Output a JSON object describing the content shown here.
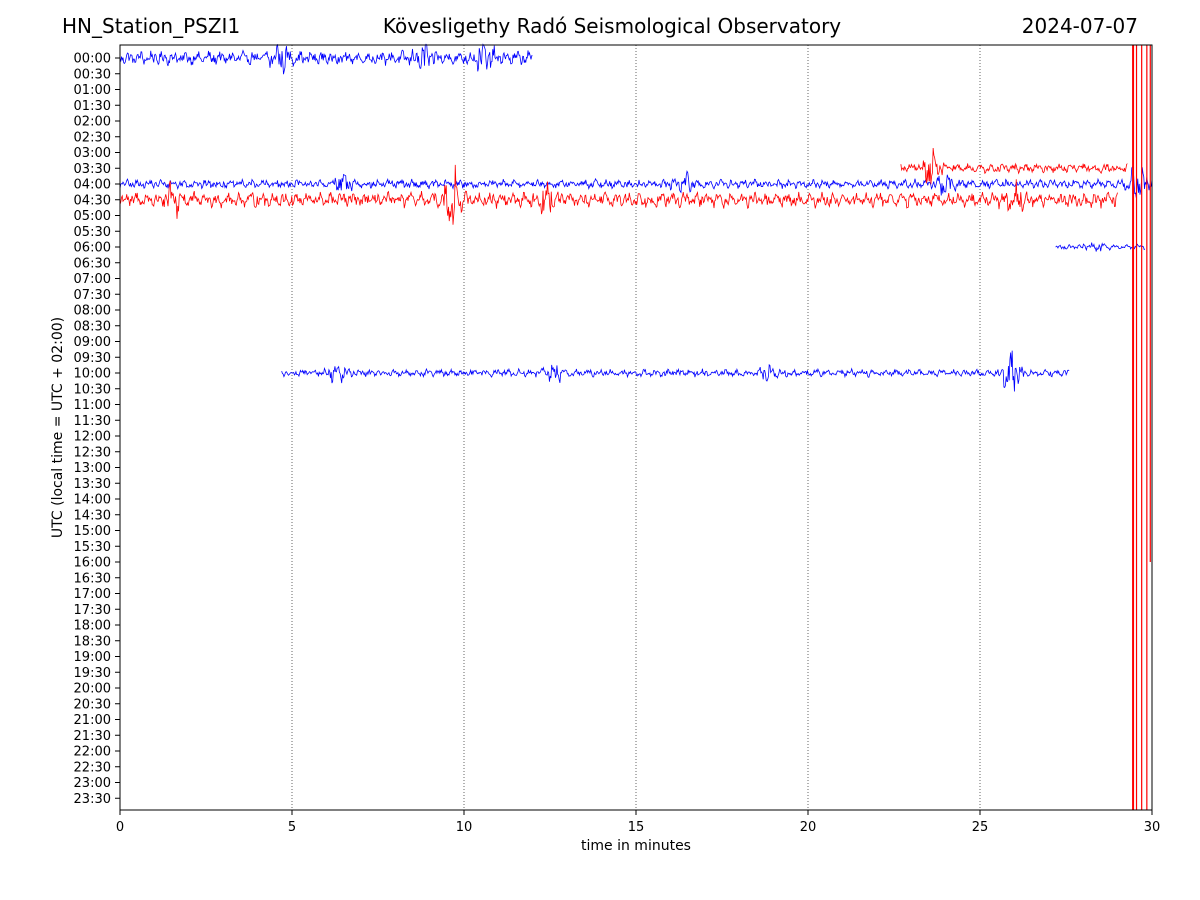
{
  "header": {
    "station": "HN_Station_PSZI1",
    "observatory": "Kövesligethy Radó Seismological Observatory",
    "date": "2024-07-07"
  },
  "chart_data": {
    "type": "line",
    "title": "Kövesligethy Radó Seismological Observatory",
    "xlabel": "time in minutes",
    "ylabel": "UTC (local time = UTC + 02:00)",
    "xlim": [
      0,
      30
    ],
    "x_ticks": [
      "0",
      "5",
      "10",
      "15",
      "20",
      "25",
      "30"
    ],
    "y_ticks": [
      "00:00",
      "00:30",
      "01:00",
      "01:30",
      "02:00",
      "02:30",
      "03:00",
      "03:30",
      "04:00",
      "04:30",
      "05:00",
      "05:30",
      "06:00",
      "06:30",
      "07:00",
      "07:30",
      "08:00",
      "08:30",
      "09:00",
      "09:30",
      "10:00",
      "10:30",
      "11:00",
      "11:30",
      "12:00",
      "12:30",
      "13:00",
      "13:30",
      "14:00",
      "14:30",
      "15:00",
      "15:30",
      "16:00",
      "16:30",
      "17:00",
      "17:30",
      "18:00",
      "18:30",
      "19:00",
      "19:30",
      "20:00",
      "20:30",
      "21:00",
      "21:30",
      "22:00",
      "22:30",
      "23:00",
      "23:30"
    ],
    "grid": "vertical dotted lines at every 5 minutes",
    "colors": {
      "blue": "#0000ff",
      "red": "#ff0000"
    },
    "series": [
      {
        "row": "00:00",
        "color": "blue",
        "x_start": 0,
        "x_end": 12,
        "amplitude": 0.45,
        "bursts": [
          {
            "x": 4.6,
            "amp": 0.9
          },
          {
            "x": 8.8,
            "amp": 0.85
          },
          {
            "x": 10.6,
            "amp": 0.8
          }
        ]
      },
      {
        "row": "04:00",
        "color": "blue",
        "x_start": 0,
        "x_end": 30,
        "amplitude": 0.3,
        "bursts": [
          {
            "x": 6.5,
            "amp": 0.6
          },
          {
            "x": 16.4,
            "amp": 0.55
          },
          {
            "x": 24,
            "amp": 0.7
          },
          {
            "x": 29.6,
            "amp": 1.2
          }
        ]
      },
      {
        "row": "04:30",
        "color": "red",
        "x_start": 0,
        "x_end": 29,
        "amplitude": 0.5,
        "bursts": [
          {
            "x": 1.6,
            "amp": 0.9
          },
          {
            "x": 9.7,
            "amp": 1.8
          },
          {
            "x": 12.4,
            "amp": 0.9
          },
          {
            "x": 26,
            "amp": 0.9
          }
        ]
      },
      {
        "row": "03:30",
        "color": "red",
        "x_start": 22.7,
        "x_end": 29.3,
        "amplitude": 0.3,
        "bursts": [
          {
            "x": 23.6,
            "amp": 1.2
          }
        ]
      },
      {
        "row": "06:00",
        "color": "blue",
        "x_start": 27.2,
        "x_end": 29.8,
        "amplitude": 0.18,
        "bursts": [
          {
            "x": 28.3,
            "amp": 0.3
          }
        ]
      },
      {
        "row": "10:00",
        "color": "blue",
        "x_start": 4.7,
        "x_end": 27.6,
        "amplitude": 0.25,
        "bursts": [
          {
            "x": 6.3,
            "amp": 0.5
          },
          {
            "x": 12.6,
            "amp": 0.6
          },
          {
            "x": 18.9,
            "amp": 0.4
          },
          {
            "x": 25.9,
            "amp": 1.4
          }
        ]
      }
    ],
    "saturated_lines": [
      {
        "color": "red",
        "x": 29.45,
        "from": "00:00",
        "to": "23:30"
      },
      {
        "color": "red",
        "x": 29.55,
        "from": "00:00",
        "to": "23:30"
      },
      {
        "color": "red",
        "x": 29.7,
        "from": "00:00",
        "to": "23:30"
      },
      {
        "color": "red",
        "x": 29.85,
        "from": "00:00",
        "to": "23:30"
      },
      {
        "color": "red",
        "x": 29.95,
        "from": "00:00",
        "to": "16:00"
      }
    ]
  }
}
